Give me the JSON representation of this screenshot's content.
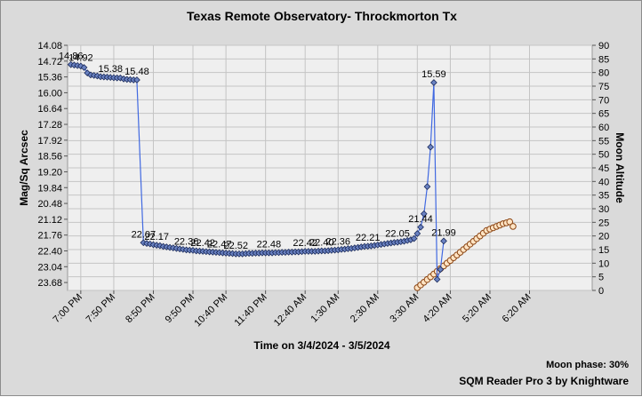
{
  "chart_data": {
    "type": "line",
    "title": "Texas Remote Observatory- Throckmorton Tx",
    "xlabel": "Time on 3/4/2024 - 3/5/2024",
    "ylabel_left": "Mag/Sq Arcsec",
    "ylabel_right": "Moon Altitude",
    "footer": "SQM Reader Pro 3 by Knightware",
    "moon_phase_text": "Moon phase: 30%",
    "y_left": {
      "min": 14.08,
      "max": 24.0,
      "inverted": true,
      "ticks": [
        "14.08",
        "14.72",
        "15.36",
        "16.00",
        "16.64",
        "17.28",
        "17.92",
        "18.56",
        "19.20",
        "19.84",
        "20.48",
        "21.12",
        "21.76",
        "22.40",
        "23.04",
        "23.68"
      ]
    },
    "y_right": {
      "min": 0,
      "max": 90,
      "step": 5
    },
    "x_axis": {
      "start": "18:40",
      "end": "07:55",
      "tick_labels": [
        "7:00 PM",
        "7:50 PM",
        "8:50 PM",
        "9:50 PM",
        "10:40 PM",
        "11:40 PM",
        "12:40 AM",
        "1:30 AM",
        "2:30 AM",
        "3:30 AM",
        "4:20 AM",
        "5:20 AM",
        "6:20 AM"
      ],
      "tick_times": [
        "19:00",
        "19:50",
        "20:50",
        "21:50",
        "22:40",
        "23:40",
        "00:40",
        "01:30",
        "02:30",
        "03:30",
        "04:20",
        "05:20",
        "06:20"
      ]
    },
    "grid": true,
    "series": [
      {
        "axis": "left",
        "color": "#4169e1",
        "marker": "diamond",
        "points": [
          [
            "18:45",
            14.86
          ],
          [
            "18:50",
            14.88
          ],
          [
            "18:55",
            14.9
          ],
          [
            "19:00",
            14.92
          ],
          [
            "19:05",
            14.98
          ],
          [
            "19:10",
            15.2
          ],
          [
            "19:15",
            15.28
          ],
          [
            "19:20",
            15.3
          ],
          [
            "19:25",
            15.32
          ],
          [
            "19:30",
            15.35
          ],
          [
            "19:35",
            15.36
          ],
          [
            "19:40",
            15.37
          ],
          [
            "19:45",
            15.38
          ],
          [
            "19:50",
            15.39
          ],
          [
            "19:55",
            15.4
          ],
          [
            "20:00",
            15.4
          ],
          [
            "20:05",
            15.44
          ],
          [
            "20:10",
            15.46
          ],
          [
            "20:15",
            15.47
          ],
          [
            "20:20",
            15.48
          ],
          [
            "20:25",
            15.48
          ],
          [
            "20:35",
            22.07
          ],
          [
            "20:40",
            22.1
          ],
          [
            "20:45",
            22.12
          ],
          [
            "20:50",
            22.15
          ],
          [
            "20:55",
            22.17
          ],
          [
            "21:00",
            22.19
          ],
          [
            "21:05",
            22.22
          ],
          [
            "21:10",
            22.24
          ],
          [
            "21:15",
            22.26
          ],
          [
            "21:20",
            22.28
          ],
          [
            "21:25",
            22.3
          ],
          [
            "21:30",
            22.32
          ],
          [
            "21:35",
            22.34
          ],
          [
            "21:40",
            22.36
          ],
          [
            "21:45",
            22.37
          ],
          [
            "21:50",
            22.38
          ],
          [
            "21:55",
            22.4
          ],
          [
            "22:00",
            22.41
          ],
          [
            "22:05",
            22.42
          ],
          [
            "22:10",
            22.43
          ],
          [
            "22:15",
            22.44
          ],
          [
            "22:20",
            22.45
          ],
          [
            "22:25",
            22.46
          ],
          [
            "22:30",
            22.47
          ],
          [
            "22:35",
            22.48
          ],
          [
            "22:40",
            22.49
          ],
          [
            "22:45",
            22.5
          ],
          [
            "22:50",
            22.51
          ],
          [
            "22:55",
            22.52
          ],
          [
            "23:00",
            22.52
          ],
          [
            "23:05",
            22.52
          ],
          [
            "23:10",
            22.51
          ],
          [
            "23:15",
            22.5
          ],
          [
            "23:20",
            22.5
          ],
          [
            "23:25",
            22.49
          ],
          [
            "23:30",
            22.49
          ],
          [
            "23:35",
            22.48
          ],
          [
            "23:40",
            22.48
          ],
          [
            "23:45",
            22.48
          ],
          [
            "23:50",
            22.48
          ],
          [
            "23:55",
            22.47
          ],
          [
            "00:00",
            22.47
          ],
          [
            "00:05",
            22.46
          ],
          [
            "00:10",
            22.46
          ],
          [
            "00:15",
            22.45
          ],
          [
            "00:20",
            22.45
          ],
          [
            "00:25",
            22.44
          ],
          [
            "00:30",
            22.44
          ],
          [
            "00:35",
            22.43
          ],
          [
            "00:40",
            22.42
          ],
          [
            "00:45",
            22.42
          ],
          [
            "00:50",
            22.42
          ],
          [
            "00:55",
            22.42
          ],
          [
            "01:00",
            22.41
          ],
          [
            "01:05",
            22.4
          ],
          [
            "01:10",
            22.4
          ],
          [
            "01:15",
            22.39
          ],
          [
            "01:20",
            22.38
          ],
          [
            "01:25",
            22.37
          ],
          [
            "01:30",
            22.36
          ],
          [
            "01:35",
            22.34
          ],
          [
            "01:40",
            22.33
          ],
          [
            "01:45",
            22.31
          ],
          [
            "01:50",
            22.3
          ],
          [
            "01:55",
            22.28
          ],
          [
            "02:00",
            22.26
          ],
          [
            "02:05",
            22.24
          ],
          [
            "02:10",
            22.22
          ],
          [
            "02:15",
            22.21
          ],
          [
            "02:20",
            22.2
          ],
          [
            "02:25",
            22.18
          ],
          [
            "02:30",
            22.16
          ],
          [
            "02:35",
            22.14
          ],
          [
            "02:40",
            22.12
          ],
          [
            "02:45",
            22.1
          ],
          [
            "02:50",
            22.08
          ],
          [
            "02:55",
            22.06
          ],
          [
            "03:00",
            22.05
          ],
          [
            "03:05",
            22.03
          ],
          [
            "03:10",
            22.01
          ],
          [
            "03:15",
            21.98
          ],
          [
            "03:20",
            21.95
          ],
          [
            "03:25",
            21.9
          ],
          [
            "03:30",
            21.7
          ],
          [
            "03:35",
            21.44
          ],
          [
            "03:40",
            20.9
          ],
          [
            "03:45",
            19.8
          ],
          [
            "03:50",
            18.2
          ],
          [
            "03:55",
            15.59
          ],
          [
            "04:00",
            23.55
          ],
          [
            "04:05",
            23.15
          ],
          [
            "04:10",
            22.0
          ]
        ],
        "data_labels": [
          [
            "18:45",
            14.86,
            "14.86"
          ],
          [
            "19:00",
            14.92,
            "14.92"
          ],
          [
            "19:45",
            15.38,
            "15.38"
          ],
          [
            "20:25",
            15.48,
            "15.48"
          ],
          [
            "20:35",
            22.07,
            "22.07"
          ],
          [
            "20:55",
            22.17,
            "22.17"
          ],
          [
            "21:40",
            22.36,
            "22.36"
          ],
          [
            "22:05",
            22.42,
            "22.42"
          ],
          [
            "22:30",
            22.47,
            "22.47"
          ],
          [
            "22:55",
            22.52,
            "22.52"
          ],
          [
            "23:45",
            22.48,
            "22.48"
          ],
          [
            "00:40",
            22.42,
            "22.42"
          ],
          [
            "01:05",
            22.4,
            "22.40"
          ],
          [
            "01:30",
            22.36,
            "22.36"
          ],
          [
            "02:15",
            22.21,
            "22.21"
          ],
          [
            "03:00",
            22.05,
            "22.05"
          ],
          [
            "03:35",
            21.44,
            "21.44"
          ],
          [
            "03:55",
            15.59,
            "15.59"
          ],
          [
            "04:10",
            22.0,
            "21.99"
          ]
        ]
      },
      {
        "axis": "right",
        "color": "#8b4513",
        "fill": "#ffe4c4",
        "marker": "circle",
        "label": "Moon altitude",
        "points": [
          [
            "03:30",
            1
          ],
          [
            "03:35",
            2
          ],
          [
            "03:40",
            3
          ],
          [
            "03:45",
            4
          ],
          [
            "03:50",
            5
          ],
          [
            "03:55",
            6
          ],
          [
            "04:00",
            7
          ],
          [
            "04:05",
            8
          ],
          [
            "04:10",
            9
          ],
          [
            "04:15",
            10
          ],
          [
            "04:20",
            11
          ],
          [
            "04:25",
            12
          ],
          [
            "04:30",
            13
          ],
          [
            "04:35",
            14
          ],
          [
            "04:40",
            15
          ],
          [
            "04:45",
            16
          ],
          [
            "04:50",
            17
          ],
          [
            "04:55",
            18
          ],
          [
            "05:00",
            19
          ],
          [
            "05:05",
            20
          ],
          [
            "05:10",
            21
          ],
          [
            "05:15",
            22
          ],
          [
            "05:20",
            22.5
          ],
          [
            "05:25",
            23
          ],
          [
            "05:30",
            23.5
          ],
          [
            "05:35",
            24
          ],
          [
            "05:40",
            24.5
          ],
          [
            "05:45",
            24.8
          ],
          [
            "05:50",
            25.2
          ],
          [
            "05:55",
            23.5
          ]
        ]
      }
    ]
  }
}
